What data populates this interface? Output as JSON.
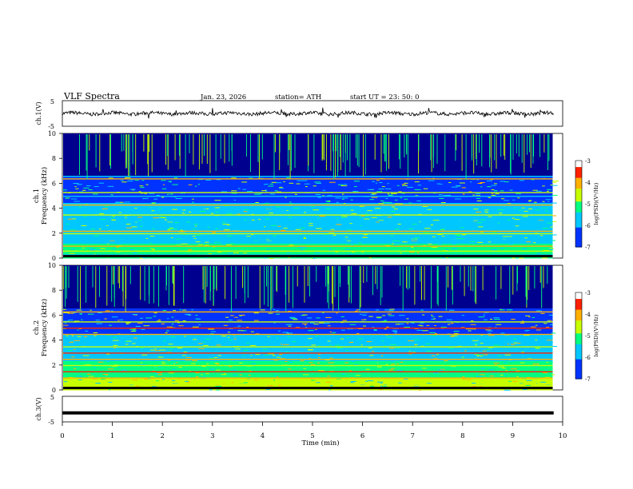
{
  "header": {
    "title": "VLF  Spectra",
    "date": "Jan. 23, 2026",
    "station": "station= ATH",
    "start": "start  UT  =    23: 50: 0"
  },
  "chart_data": [
    {
      "type": "line",
      "panel": "ch1-waveform",
      "ylabel": "ch.1(V)",
      "ylim": [
        -5,
        5
      ],
      "yticks": [
        "5",
        "-5"
      ],
      "xlim": [
        0,
        10
      ],
      "baseline_value": 0,
      "description_values": "noisy trace near 0 V with small spikes"
    },
    {
      "type": "heatmap",
      "panel": "ch1-spectrogram",
      "ylabel": "Frequency  (kHz)",
      "ylabel2": "ch.1",
      "ylim": [
        0,
        10
      ],
      "yticks": [
        "0",
        "2",
        "4",
        "6",
        "8",
        "10"
      ],
      "xlim": [
        0,
        10
      ],
      "colorbar": {
        "label": "log(PSD)(V²/Hz)",
        "range": [
          -7,
          -3
        ],
        "ticks": [
          "-3",
          "-4",
          "-5",
          "-6",
          "-7"
        ]
      },
      "bands_khz": [
        0.3,
        0.6,
        1.0,
        1.5,
        2.0,
        2.2,
        3.0,
        3.5,
        4.3,
        5.0,
        5.3,
        6.4,
        6.6
      ],
      "data_end_min": 9.8
    },
    {
      "type": "heatmap",
      "panel": "ch2-spectrogram",
      "ylabel": "Frequency  (kHz)",
      "ylabel2": "ch.2",
      "ylim": [
        0,
        10
      ],
      "yticks": [
        "0",
        "2",
        "4",
        "6",
        "8",
        "10"
      ],
      "xlim": [
        0,
        10
      ],
      "colorbar": {
        "label": "log(PSD)(V²/Hz)",
        "range": [
          -7,
          -3
        ],
        "ticks": [
          "-3",
          "-4",
          "-5",
          "-6",
          "-7"
        ]
      },
      "bands_khz": [
        0.5,
        1.0,
        1.5,
        2.0,
        2.5,
        3.0,
        3.5,
        4.5,
        5.0,
        5.5,
        6.3
      ],
      "data_end_min": 9.8
    },
    {
      "type": "line",
      "panel": "ch3-waveform",
      "ylabel": "ch.3(V)",
      "ylim": [
        -5,
        5
      ],
      "yticks": [
        "5",
        "-5"
      ],
      "xlim": [
        0,
        10
      ],
      "baseline_value": -1.5,
      "xlabel": "Time  (min)",
      "xticks": [
        "0",
        "1",
        "2",
        "3",
        "4",
        "5",
        "6",
        "7",
        "8",
        "9",
        "10"
      ]
    }
  ]
}
